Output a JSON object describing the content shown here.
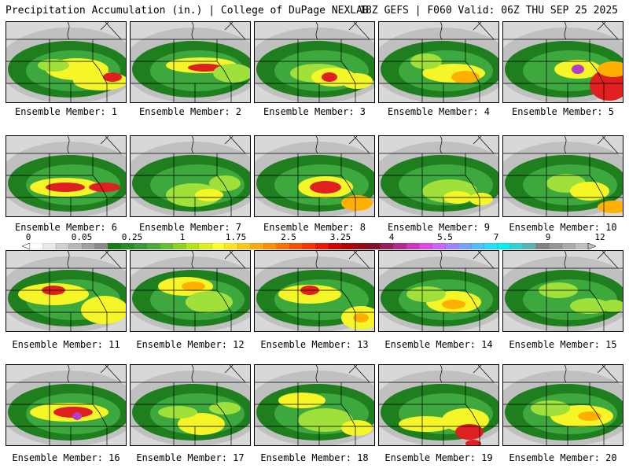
{
  "header": {
    "left_title": "Precipitation Accumulation (in.) | College of DuPage NEXLAB",
    "right_title": "18Z GEFS | F060 Valid: 06Z THU SEP 25 2025"
  },
  "colorbar": {
    "labels": [
      "0",
      "0.05",
      "0.25",
      "1",
      "1.75",
      "2.5",
      "3.25",
      "4",
      "5.5",
      "7",
      "9",
      "12"
    ],
    "colors": [
      "#ffffff",
      "#e8e8e8",
      "#cfcfcf",
      "#b8b8b8",
      "#a0a0a0",
      "#8a8a8a",
      "#1a7a1a",
      "#2a8a2a",
      "#3a9a3a",
      "#4caa3a",
      "#64c032",
      "#8cd21e",
      "#b4e414",
      "#dcf01e",
      "#ffff28",
      "#ffe61e",
      "#ffc814",
      "#ffaa0a",
      "#ff8c00",
      "#ff6e00",
      "#ff5000",
      "#ff3200",
      "#ee1400",
      "#d20000",
      "#b40000",
      "#960a14",
      "#82102a",
      "#961e5a",
      "#b4288c",
      "#d232be",
      "#e646e6",
      "#c864ff",
      "#a082ff",
      "#78a0ff",
      "#50beff",
      "#28dcff",
      "#00f0f0",
      "#32d2d2",
      "#5ab4b4",
      "#828282",
      "#969696",
      "#aaaaaa",
      "#bebebe"
    ]
  },
  "members": [
    {
      "label": "Ensemble Member: 1"
    },
    {
      "label": "Ensemble Member: 2"
    },
    {
      "label": "Ensemble Member: 3"
    },
    {
      "label": "Ensemble Member: 4"
    },
    {
      "label": "Ensemble Member: 5"
    },
    {
      "label": "Ensemble Member: 6"
    },
    {
      "label": "Ensemble Member: 7"
    },
    {
      "label": "Ensemble Member: 8"
    },
    {
      "label": "Ensemble Member: 9"
    },
    {
      "label": "Ensemble Member: 10"
    },
    {
      "label": "Ensemble Member: 11"
    },
    {
      "label": "Ensemble Member: 12"
    },
    {
      "label": "Ensemble Member: 13"
    },
    {
      "label": "Ensemble Member: 14"
    },
    {
      "label": "Ensemble Member: 15"
    },
    {
      "label": "Ensemble Member: 16"
    },
    {
      "label": "Ensemble Member: 17"
    },
    {
      "label": "Ensemble Member: 18"
    },
    {
      "label": "Ensemble Member: 19"
    },
    {
      "label": "Ensemble Member: 20"
    }
  ],
  "legend_colors": {
    "missing": "#d8d8d8",
    "light": "#c0c0c0",
    "green_dark": "#1f7f1f",
    "green": "#3da83d",
    "lime": "#9fe03a",
    "yellow": "#f5f528",
    "orange": "#ffb000",
    "red": "#e02020",
    "maroon": "#8b1030",
    "magenta": "#b43cc8"
  }
}
